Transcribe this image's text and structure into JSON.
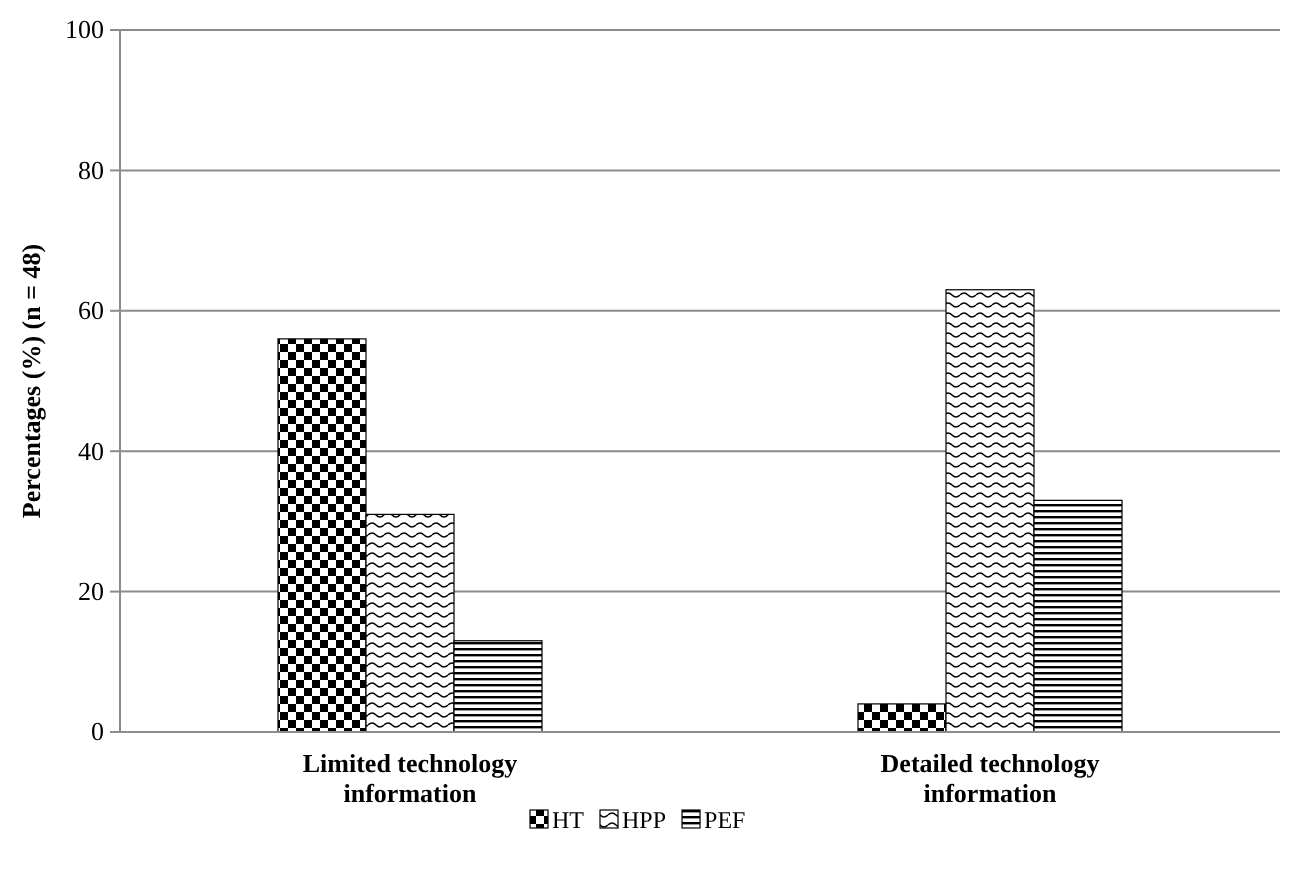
{
  "chart_data": {
    "type": "bar",
    "ylabel": "Percentages (%) (n = 48)",
    "categories": [
      "Limited technology information",
      "Detailed technology information"
    ],
    "series": [
      {
        "name": "HT",
        "color": "#000000",
        "values": [
          56,
          4
        ]
      },
      {
        "name": "HPP",
        "color": "#000000",
        "values": [
          31,
          63
        ]
      },
      {
        "name": "PEF",
        "color": "#000000",
        "values": [
          13,
          33
        ]
      }
    ],
    "ylim": [
      0,
      100
    ],
    "yticks": [
      0,
      20,
      40,
      60,
      80,
      100
    ],
    "grid": "y",
    "legend": "bottom"
  }
}
